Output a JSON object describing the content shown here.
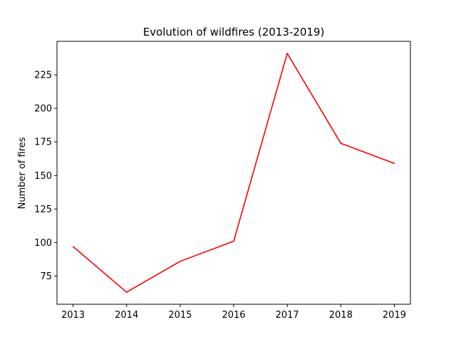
{
  "chart_data": {
    "type": "line",
    "title": "Evolution of wildfires (2013-2019)",
    "xlabel": "",
    "ylabel": "Number of fires",
    "x": [
      2013,
      2014,
      2015,
      2016,
      2017,
      2018,
      2019
    ],
    "series": [
      {
        "values": [
          97,
          63,
          86,
          101,
          241,
          174,
          159
        ],
        "color": "#ff0000"
      }
    ],
    "xlim": [
      2012.7,
      2019.3
    ],
    "ylim": [
      54,
      250
    ],
    "x_ticks": [
      2013,
      2014,
      2015,
      2016,
      2017,
      2018,
      2019
    ],
    "y_ticks": [
      75,
      100,
      125,
      150,
      175,
      200,
      225
    ],
    "grid": false,
    "legend": "none"
  }
}
